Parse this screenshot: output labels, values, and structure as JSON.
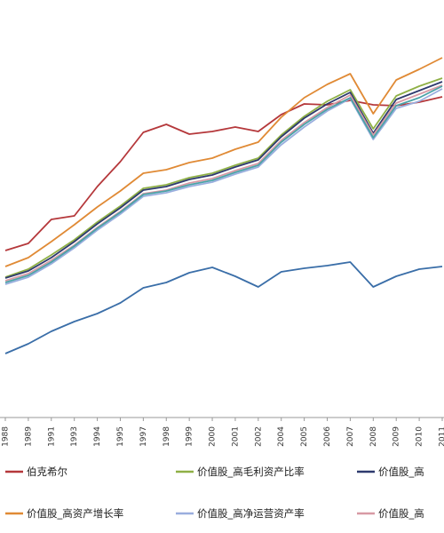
{
  "chart_data": {
    "type": "line",
    "title": "",
    "xlabel": "",
    "ylabel": "",
    "x_categories": [
      "1988",
      "1989",
      "1991",
      "1993",
      "1994",
      "1995",
      "1997",
      "1998",
      "1999",
      "2000",
      "2001",
      "2002",
      "2004",
      "2005",
      "2006",
      "2007",
      "2008",
      "2009",
      "2010",
      "2011"
    ],
    "grid": false,
    "legend_position": "bottom",
    "series": [
      {
        "name": "伯克希尔",
        "color": "#b5383b",
        "values": [
          282,
          274,
          247,
          243,
          210,
          182,
          149,
          140,
          151,
          148,
          143,
          148,
          129,
          117,
          118,
          113,
          118,
          119,
          115,
          109
        ]
      },
      {
        "name": "价值股_高毛利资产比率",
        "color": "#8fb046",
        "values": [
          312,
          303,
          287,
          270,
          250,
          232,
          212,
          208,
          200,
          195,
          186,
          178,
          152,
          131,
          114,
          101,
          145,
          108,
          97,
          88
        ]
      },
      {
        "name": "价值股_高…",
        "color": "#2e3a6e",
        "values": [
          313,
          305,
          290,
          272,
          252,
          234,
          214,
          210,
          202,
          197,
          188,
          180,
          154,
          133,
          117,
          104,
          150,
          112,
          102,
          92
        ]
      },
      {
        "name": "价值股_高资产增长率",
        "color": "#e08a35",
        "values": [
          300,
          290,
          272,
          253,
          233,
          215,
          195,
          191,
          183,
          178,
          168,
          160,
          132,
          110,
          95,
          83,
          128,
          90,
          78,
          65
        ]
      },
      {
        "name": "价值股_高净运营资产率",
        "color": "#9aaede",
        "values": [
          320,
          312,
          297,
          279,
          259,
          241,
          221,
          217,
          210,
          205,
          196,
          188,
          163,
          143,
          125,
          111,
          157,
          122,
          114,
          100
        ]
      },
      {
        "name": "价值股_高…",
        "color": "#d89aa5",
        "values": [
          316,
          308,
          293,
          276,
          256,
          238,
          218,
          214,
          206,
          201,
          192,
          184,
          158,
          138,
          121,
          107,
          152,
          116,
          106,
          96
        ]
      },
      {
        "name": "",
        "color": "#3a6ea8",
        "values": [
          398,
          387,
          373,
          362,
          353,
          341,
          324,
          318,
          307,
          301,
          311,
          323,
          306,
          302,
          299,
          295,
          323,
          311,
          303,
          300
        ]
      },
      {
        "name": "",
        "color": "#4aa3a8",
        "values": [
          318,
          310,
          295,
          277,
          257,
          239,
          219,
          215,
          208,
          203,
          194,
          186,
          160,
          140,
          123,
          110,
          155,
          119,
          110,
          97
        ]
      }
    ]
  },
  "legend": [
    {
      "label": "伯克希尔",
      "color": "#b5383b"
    },
    {
      "label": "价值股_高毛利资产比率",
      "color": "#8fb046"
    },
    {
      "label": "价值股_高",
      "color": "#2e3a6e"
    },
    {
      "label": "价值股_高资产增长率",
      "color": "#e08a35"
    },
    {
      "label": "价值股_高净运营资产率",
      "color": "#9aaede"
    },
    {
      "label": "价值股_高",
      "color": "#d89aa5"
    }
  ]
}
